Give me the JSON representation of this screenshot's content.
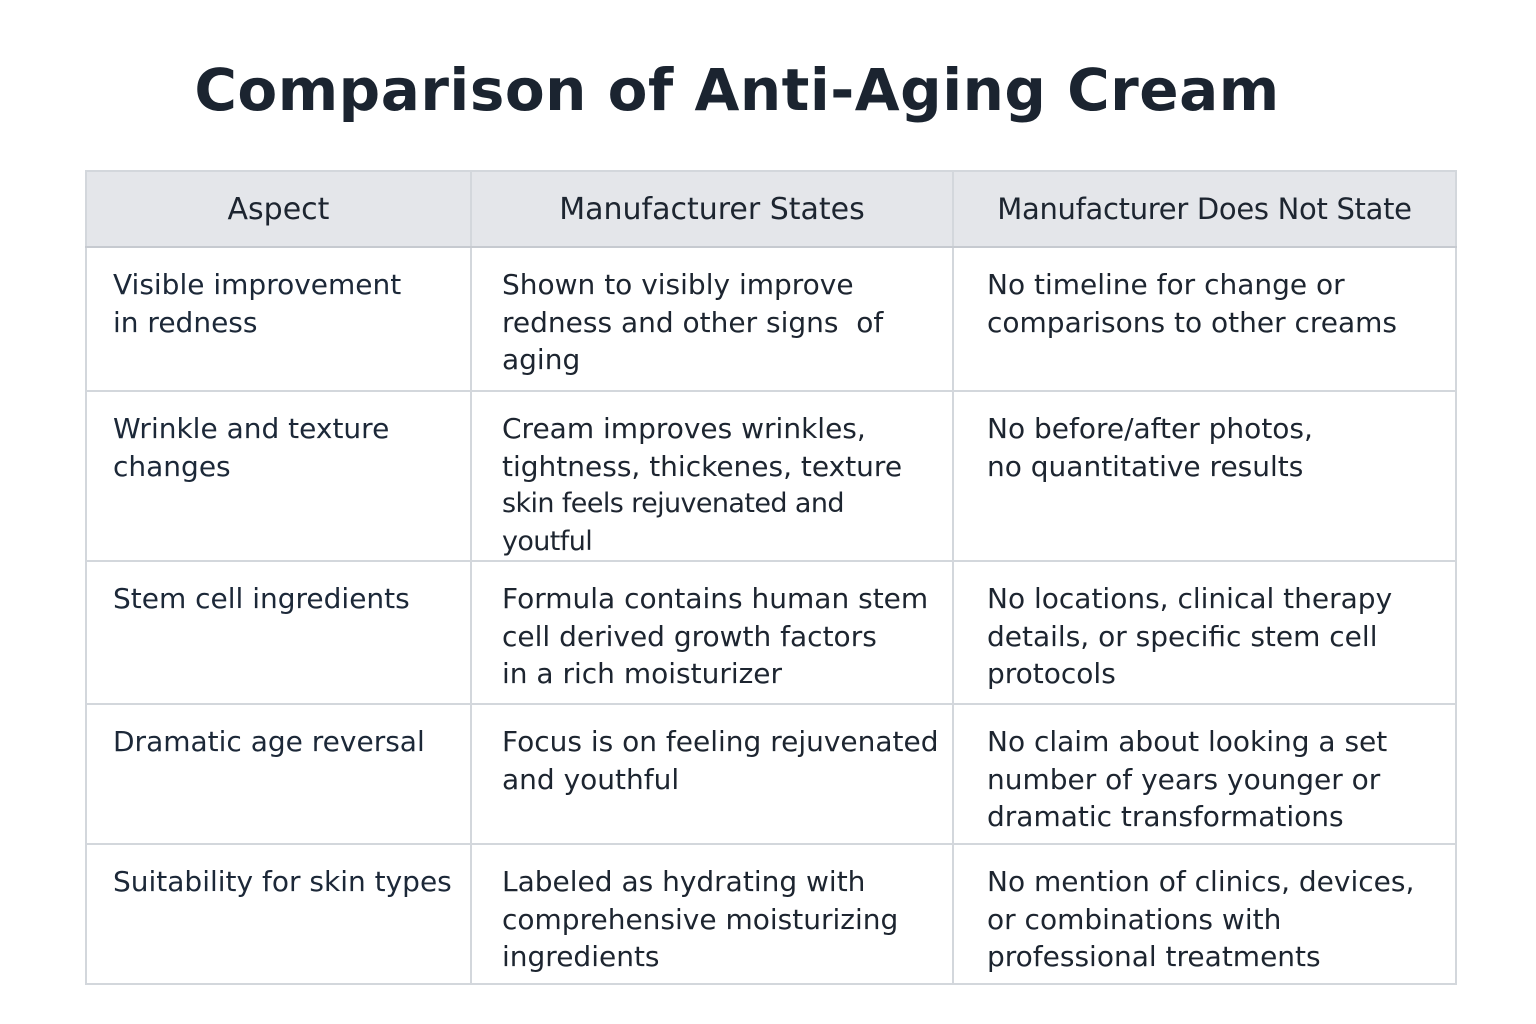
{
  "title": "Comparison of Anti-Aging Cream",
  "headers": [
    "Aspect",
    "Manufacturer States",
    "Manufacturer Does Not State"
  ],
  "rows": [
    {
      "aspect": [
        "Visible improvement",
        "in redness"
      ],
      "states": [
        "Shown to visibly improve",
        "redness and other signs  of",
        "aging"
      ],
      "not_state": [
        "No timeline for change or",
        "comparisons to other creams"
      ]
    },
    {
      "aspect": [
        "Wrinkle and texture",
        "changes"
      ],
      "states": [
        "Cream improves wrinkles,",
        "tightness, thickenes, texture",
        "skin feels rejuvenated and youtful"
      ],
      "not_state": [
        "No before/after photos,",
        "no quantitative results"
      ]
    },
    {
      "aspect": [
        "Stem cell ingredients"
      ],
      "states": [
        "Formula contains human stem",
        "cell derived growth factors",
        "in a rich moisturizer"
      ],
      "not_state": [
        "No locations, clinical therapy",
        "details, or specific stem cell",
        "protocols"
      ]
    },
    {
      "aspect": [
        "Dramatic age reversal"
      ],
      "states": [
        "Focus is on feeling rejuvenated",
        "and youthful"
      ],
      "not_state": [
        "No claim about looking a set",
        "number of years younger or",
        "dramatic transformations"
      ]
    },
    {
      "aspect": [
        "Suitability for skin types"
      ],
      "states": [
        "Labeled as hydrating with",
        "comprehensive moisturizing",
        "ingredients"
      ],
      "not_state": [
        "No mention of clinics, devices,",
        "or combinations with",
        "professional treatments"
      ]
    }
  ]
}
